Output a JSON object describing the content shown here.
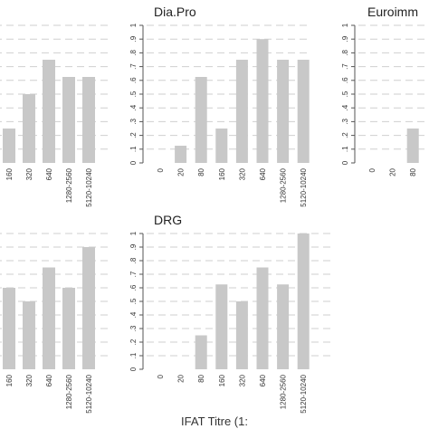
{
  "figure": {
    "xlabel": "IFAT Titre (1:"
  },
  "chart_data": [
    {
      "type": "bar",
      "title": "",
      "categories": [
        "160",
        "320",
        "640",
        "1280-2560",
        "5120-10240"
      ],
      "values": [
        0.25,
        0.5,
        0.75,
        0.625,
        0.625
      ],
      "ylim": [
        0,
        1
      ],
      "grid": true
    },
    {
      "type": "bar",
      "title": "Dia.Pro",
      "categories": [
        "0",
        "20",
        "80",
        "160",
        "320",
        "640",
        "1280-2560",
        "5120-10240"
      ],
      "values": [
        0,
        0.125,
        0.625,
        0.25,
        0.75,
        0.9,
        0.75,
        0.75
      ],
      "ylim": [
        0,
        1
      ],
      "yticks": [
        "0",
        ".1",
        ".2",
        ".3",
        ".4",
        ".5",
        ".6",
        ".7",
        ".8",
        ".9",
        "1"
      ],
      "grid": true
    },
    {
      "type": "bar",
      "title": "Euroimm",
      "categories": [
        "0",
        "20",
        "80"
      ],
      "values": [
        0,
        0,
        0.25
      ],
      "ylim": [
        0,
        1
      ],
      "yticks": [
        "0",
        ".1",
        ".2",
        ".3",
        ".4",
        ".5",
        ".6",
        ".7",
        ".8",
        ".9",
        "1"
      ],
      "grid": true
    },
    {
      "type": "bar",
      "title": "",
      "categories": [
        "160",
        "320",
        "640",
        "1280-2560",
        "5120-10240"
      ],
      "values": [
        0.6,
        0.5,
        0.75,
        0.6,
        0.9
      ],
      "ylim": [
        0,
        1
      ],
      "grid": true
    },
    {
      "type": "bar",
      "title": "DRG",
      "categories": [
        "0",
        "20",
        "80",
        "160",
        "320",
        "640",
        "1280-2560",
        "5120-10240"
      ],
      "values": [
        0,
        0,
        0.25,
        0.625,
        0.5,
        0.75,
        0.625,
        1.0
      ],
      "ylim": [
        0,
        1
      ],
      "yticks": [
        "0",
        ".1",
        ".2",
        ".3",
        ".4",
        ".5",
        ".6",
        ".7",
        ".8",
        ".9",
        "1"
      ],
      "grid": true
    }
  ],
  "colors": {
    "bar": "#c8c8c8",
    "grid": "#cfcfcf",
    "axis": "#555555",
    "text": "#333333"
  }
}
